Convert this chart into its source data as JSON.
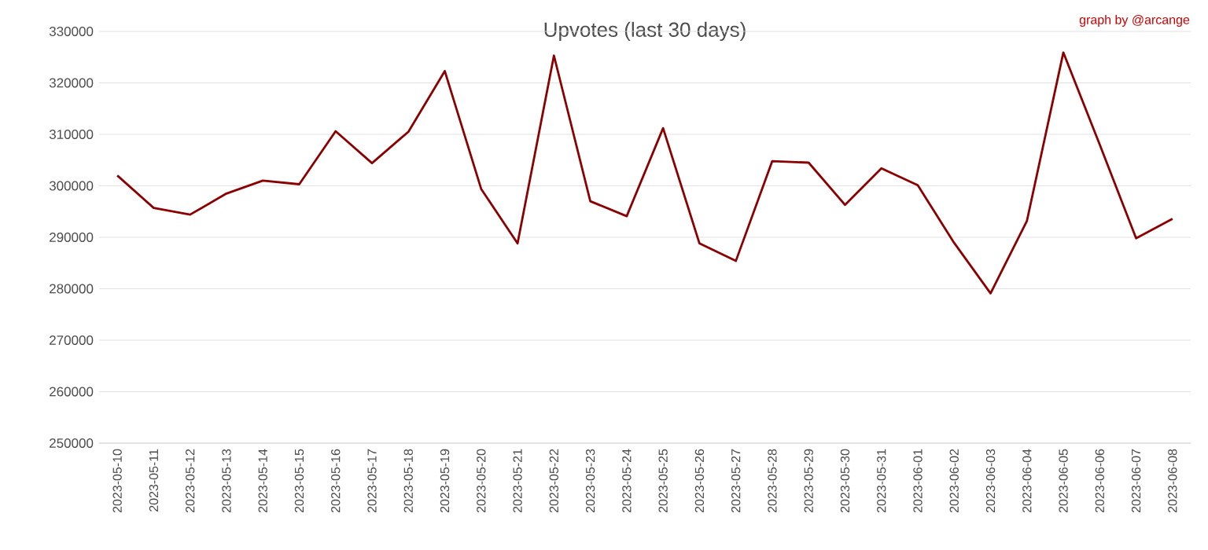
{
  "chart_data": {
    "type": "line",
    "title": "Upvotes (last 30 days)",
    "annotations": [
      "graph by @arcange"
    ],
    "categories": [
      "2023-05-10",
      "2023-05-11",
      "2023-05-12",
      "2023-05-13",
      "2023-05-14",
      "2023-05-15",
      "2023-05-16",
      "2023-05-17",
      "2023-05-18",
      "2023-05-19",
      "2023-05-20",
      "2023-05-21",
      "2023-05-22",
      "2023-05-23",
      "2023-05-24",
      "2023-05-25",
      "2023-05-26",
      "2023-05-27",
      "2023-05-28",
      "2023-05-29",
      "2023-05-30",
      "2023-05-31",
      "2023-06-01",
      "2023-06-02",
      "2023-06-03",
      "2023-06-04",
      "2023-06-05",
      "2023-06-06",
      "2023-06-07",
      "2023-06-08"
    ],
    "series": [
      {
        "color": "#8b0000",
        "values": [
          302000,
          295700,
          294400,
          298500,
          301000,
          300300,
          310600,
          304400,
          310500,
          322300,
          299400,
          288800,
          325300,
          297000,
          294100,
          311200,
          288800,
          285400,
          304800,
          304500,
          296300,
          303400,
          300100,
          288900,
          279100,
          293200,
          325900,
          308000,
          289800,
          293600
        ]
      }
    ],
    "ylim": [
      250000,
      330000
    ],
    "yticks": [
      250000,
      260000,
      270000,
      280000,
      290000,
      300000,
      310000,
      320000,
      330000
    ],
    "grid": "y",
    "marker": "none",
    "line_style": "solid"
  }
}
